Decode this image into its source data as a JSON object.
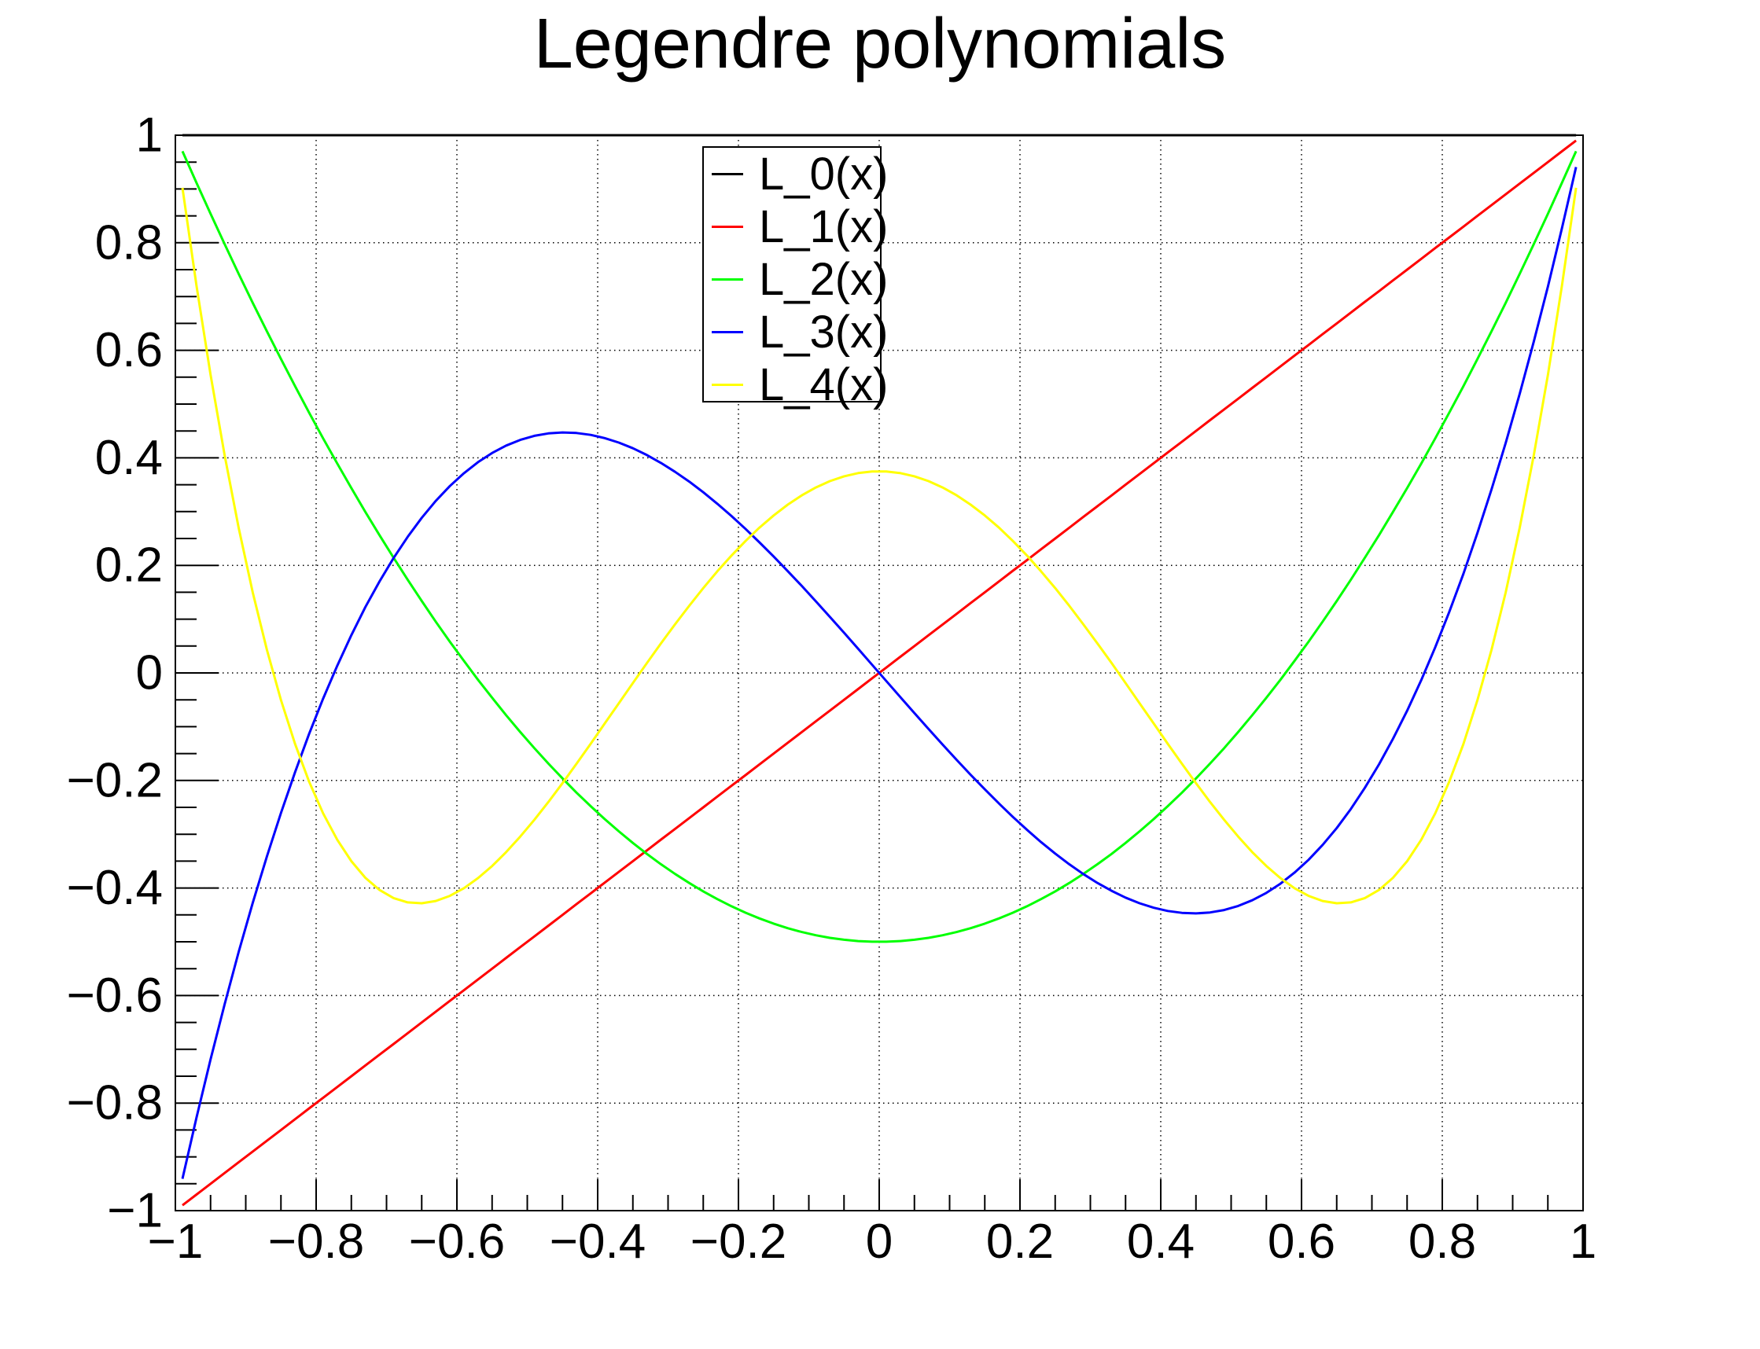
{
  "title": "Legendre polynomials",
  "background_color": "#FFFFFF",
  "frame_color": "#000000",
  "grid_color": "#000000",
  "chart_data": {
    "type": "line",
    "title": "Legendre polynomials",
    "xlabel": "",
    "ylabel": "",
    "xlim": [
      -1,
      1
    ],
    "ylim": [
      -1,
      1
    ],
    "grid": "dotted lines at every major tick (step 0.2) on both axes",
    "x_major_tick_step": 0.2,
    "y_major_tick_step": 0.2,
    "minor_tick_step": 0.05,
    "x_tick_labels": [
      "−1",
      "−0.8",
      "−0.6",
      "−0.4",
      "−0.2",
      "0",
      "0.2",
      "0.4",
      "0.6",
      "0.8",
      "1"
    ],
    "y_tick_labels": [
      "1",
      "0.8",
      "0.6",
      "0.4",
      "0.2",
      "0",
      "−0.2",
      "−0.4",
      "−0.6",
      "−0.8",
      "−1"
    ],
    "curve_domain": [
      -0.99,
      0.99
    ],
    "samples_per_curve": 100,
    "major_x_grid": [
      -1,
      -0.8,
      -0.6,
      -0.4,
      -0.2,
      0,
      0.2,
      0.4,
      0.6,
      0.8,
      1
    ],
    "series": [
      {
        "name": "L_0(x)",
        "color": "#000000",
        "degree": 0,
        "coefficients": [
          1
        ],
        "y_at_major_x": [
          1,
          1,
          1,
          1,
          1,
          1,
          1,
          1,
          1,
          1,
          1
        ]
      },
      {
        "name": "L_1(x)",
        "color": "#FF0000",
        "degree": 1,
        "coefficients": [
          0,
          1
        ],
        "y_at_major_x": [
          -1,
          -0.8,
          -0.6,
          -0.4,
          -0.2,
          0,
          0.2,
          0.4,
          0.6,
          0.8,
          1
        ]
      },
      {
        "name": "L_2(x)",
        "color": "#00FF00",
        "degree": 2,
        "coefficients": [
          -0.5,
          0,
          1.5
        ],
        "y_at_major_x": [
          1,
          0.46,
          0.04,
          -0.26,
          -0.44,
          -0.5,
          -0.44,
          -0.26,
          0.04,
          0.46,
          1
        ]
      },
      {
        "name": "L_3(x)",
        "color": "#0000FF",
        "degree": 3,
        "coefficients": [
          0,
          -1.5,
          0,
          2.5
        ],
        "y_at_major_x": [
          -1,
          -0.08,
          0.36,
          0.44,
          0.28,
          0,
          -0.28,
          -0.44,
          -0.36,
          0.08,
          1
        ]
      },
      {
        "name": "L_4(x)",
        "color": "#FFFF00",
        "degree": 4,
        "coefficients": [
          0.375,
          0,
          -3.75,
          0,
          4.375
        ],
        "y_at_major_x": [
          1,
          -0.233,
          -0.408,
          -0.113,
          0.232,
          0.375,
          0.232,
          -0.113,
          -0.408,
          -0.233,
          1
        ]
      }
    ],
    "legend": {
      "position": "top-center",
      "entries": [
        {
          "label": "L_0(x)",
          "color": "#000000"
        },
        {
          "label": "L_1(x)",
          "color": "#FF0000"
        },
        {
          "label": "L_2(x)",
          "color": "#00FF00"
        },
        {
          "label": "L_3(x)",
          "color": "#0000FF"
        },
        {
          "label": "L_4(x)",
          "color": "#FFFF00"
        }
      ]
    }
  }
}
